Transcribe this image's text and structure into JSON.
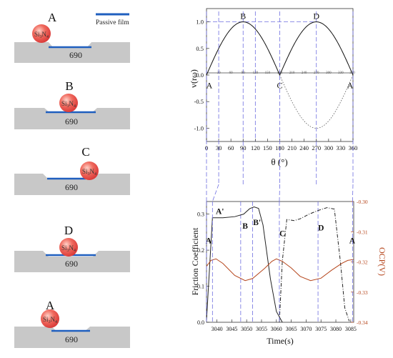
{
  "legend": {
    "passive_film": "Passive film"
  },
  "stages": [
    {
      "label": "A",
      "ball": "Si3N4",
      "sub": "690"
    },
    {
      "label": "B",
      "ball": "Si3N4",
      "sub": "690"
    },
    {
      "label": "C",
      "ball": "Si3N4",
      "sub": "690"
    },
    {
      "label": "D",
      "ball": "Si3N4",
      "sub": "690"
    },
    {
      "label": "A",
      "ball": "Si3N4",
      "sub": "690"
    }
  ],
  "colors": {
    "film": "#1f5fbf",
    "substrate": "#c8c8c8",
    "ball": "#ee4a4a",
    "guide": "#6e6ee0",
    "friction": "#222222",
    "ocp": "#b5451b"
  },
  "chart_data": [
    {
      "type": "line",
      "xlabel": "θ (°)",
      "ylabel": "v(rω)",
      "x_ticks": [
        0,
        30,
        60,
        90,
        120,
        150,
        180,
        210,
        240,
        270,
        300,
        330,
        360
      ],
      "inner_ticks": [
        "30",
        "60",
        "90",
        "120",
        "150",
        "180",
        "210",
        "240",
        "270",
        "300",
        "330",
        "360"
      ],
      "y_ticks": [
        "1.0",
        "0.5",
        "0.0",
        "-0.5",
        "-1.0"
      ],
      "xlim": [
        0,
        360
      ],
      "ylim": [
        -1.25,
        1.25
      ],
      "annotations": [
        "B",
        "D",
        "A",
        "C",
        "A"
      ],
      "series": [
        {
          "style": "solid",
          "points": [
            [
              0,
              0
            ],
            [
              30,
              0.5
            ],
            [
              60,
              0.87
            ],
            [
              90,
              1
            ],
            [
              120,
              0.87
            ],
            [
              150,
              0.5
            ],
            [
              180,
              0
            ],
            [
              210,
              0.5
            ],
            [
              240,
              0.87
            ],
            [
              270,
              1
            ],
            [
              300,
              0.87
            ],
            [
              330,
              0.5
            ],
            [
              360,
              0
            ]
          ]
        },
        {
          "style": "dotted",
          "points": [
            [
              180,
              0
            ],
            [
              210,
              -0.5
            ],
            [
              240,
              -0.87
            ],
            [
              270,
              -1
            ],
            [
              300,
              -0.87
            ],
            [
              330,
              -0.5
            ],
            [
              360,
              0
            ]
          ]
        }
      ]
    },
    {
      "type": "line",
      "xlabel": "Time(s)",
      "ylabel": "Friction Coefficient",
      "ylabel_right": "OCP(V)",
      "x_ticks": [
        "3040",
        "3045",
        "3050",
        "3055",
        "3060",
        "3065",
        "3070",
        "3075",
        "3080",
        "3085"
      ],
      "y_ticks_left": [
        "0.0",
        "0.1",
        "0.2",
        "0.3"
      ],
      "y_ticks_right": [
        "-0.30",
        "-0.31",
        "-0.32",
        "-0.33",
        "-0.34"
      ],
      "xlim": [
        3036.5,
        3086
      ],
      "ylim_left": [
        0,
        0.335
      ],
      "ylim_right": [
        -0.34,
        -0.3
      ],
      "annotations": [
        "A",
        "A'",
        "B",
        "B'",
        "C",
        "D",
        "A"
      ],
      "series": [
        {
          "axis": "left",
          "style": "solid",
          "points": [
            [
              3036.5,
              0.005
            ],
            [
              3038.5,
              0.29
            ],
            [
              3042,
              0.29
            ],
            [
              3046,
              0.293
            ],
            [
              3049,
              0.3
            ],
            [
              3051,
              0.315
            ],
            [
              3052.5,
              0.32
            ],
            [
              3054,
              0.316
            ],
            [
              3055.5,
              0.27
            ],
            [
              3058,
              0.12
            ],
            [
              3060,
              0.03
            ],
            [
              3062,
              0
            ]
          ]
        },
        {
          "axis": "left",
          "style": "dashdot",
          "points": [
            [
              3061,
              0.0
            ],
            [
              3062,
              0.17
            ],
            [
              3063.5,
              0.285
            ],
            [
              3066,
              0.282
            ],
            [
              3068,
              0.287
            ],
            [
              3071,
              0.3
            ],
            [
              3074,
              0.31
            ],
            [
              3077,
              0.318
            ],
            [
              3079.5,
              0.314
            ],
            [
              3081.5,
              0.17
            ],
            [
              3083,
              0.04
            ],
            [
              3084.5,
              0.003
            ]
          ]
        },
        {
          "axis": "right",
          "style": "solid",
          "points": [
            [
              3036.5,
              -0.3215
            ],
            [
              3038,
              -0.3195
            ],
            [
              3039.7,
              -0.319
            ],
            [
              3042,
              -0.3205
            ],
            [
              3046,
              -0.3245
            ],
            [
              3049.5,
              -0.3262
            ],
            [
              3052,
              -0.3255
            ],
            [
              3056,
              -0.3222
            ],
            [
              3058.5,
              -0.3198
            ],
            [
              3060,
              -0.319
            ],
            [
              3062,
              -0.3198
            ],
            [
              3065,
              -0.322
            ],
            [
              3068,
              -0.3248
            ],
            [
              3071.5,
              -0.3262
            ],
            [
              3075,
              -0.3254
            ],
            [
              3078.5,
              -0.3228
            ],
            [
              3082,
              -0.3205
            ],
            [
              3084,
              -0.3195
            ],
            [
              3086,
              -0.3192
            ]
          ]
        }
      ]
    }
  ]
}
